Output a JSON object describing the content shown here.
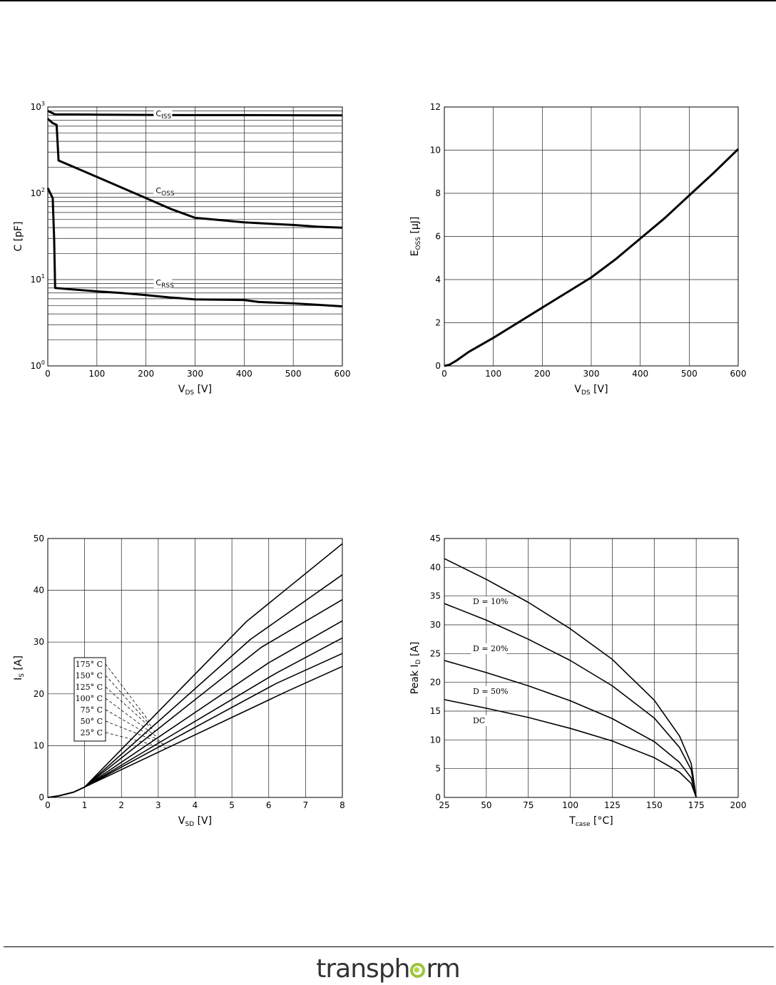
{
  "brand": {
    "name": "transphorm",
    "left": "transph",
    "right": "rm"
  },
  "chart_data": [
    {
      "id": "capacitance",
      "type": "line",
      "xscale": "linear",
      "yscale": "log",
      "xlim": [
        0,
        600
      ],
      "ylim": [
        1,
        1000
      ],
      "xticks": [
        0,
        100,
        200,
        300,
        400,
        500,
        600
      ],
      "xtick_labels": [
        "0",
        "100",
        "200",
        "300",
        "400",
        "500",
        "600"
      ],
      "yticks": [
        1,
        10,
        100,
        1000
      ],
      "ytick_labels": [
        {
          "base": "10",
          "exp": "0"
        },
        {
          "base": "10",
          "exp": "1"
        },
        {
          "base": "10",
          "exp": "2"
        },
        {
          "base": "10",
          "exp": "3"
        }
      ],
      "xlabel": {
        "main": "V",
        "sub": "DS",
        "rest": " [V]"
      },
      "ylabel": {
        "main": "C [pF]",
        "sub": "",
        "rest": ""
      },
      "grid": true,
      "series": [
        {
          "name": "C_ISS",
          "label": {
            "main": "C",
            "sub": "ISS"
          },
          "label_at": [
            220,
            780
          ],
          "x": [
            0,
            15,
            100,
            200,
            300,
            400,
            500,
            600
          ],
          "y": [
            900,
            820,
            815,
            810,
            805,
            805,
            802,
            800
          ]
        },
        {
          "name": "C_OSS",
          "label": {
            "main": "C",
            "sub": "OSS"
          },
          "label_at": [
            220,
            100
          ],
          "x": [
            0,
            10,
            18,
            22,
            100,
            200,
            250,
            300,
            350,
            400,
            500,
            550,
            600
          ],
          "y": [
            730,
            650,
            620,
            240,
            155,
            88,
            66,
            52,
            49,
            46,
            43,
            41,
            40
          ]
        },
        {
          "name": "C_RSS",
          "label": {
            "main": "C",
            "sub": "RSS"
          },
          "label_at": [
            220,
            8.6
          ],
          "x": [
            0,
            10,
            13,
            15,
            50,
            100,
            150,
            200,
            250,
            300,
            400,
            430,
            500,
            550,
            600
          ],
          "y": [
            115,
            88,
            30,
            8,
            7.7,
            7.3,
            7.0,
            6.6,
            6.2,
            5.9,
            5.8,
            5.5,
            5.3,
            5.1,
            4.9
          ]
        }
      ]
    },
    {
      "id": "eoss",
      "type": "line",
      "xscale": "linear",
      "yscale": "linear",
      "xlim": [
        0,
        600
      ],
      "ylim": [
        0,
        12
      ],
      "xticks": [
        0,
        100,
        200,
        300,
        400,
        500,
        600
      ],
      "xtick_labels": [
        "0",
        "100",
        "200",
        "300",
        "400",
        "500",
        "600"
      ],
      "yticks": [
        0,
        2,
        4,
        6,
        8,
        10,
        12
      ],
      "ytick_labels": [
        "0",
        "2",
        "4",
        "6",
        "8",
        "10",
        "12"
      ],
      "xlabel": {
        "main": "V",
        "sub": "DS",
        "rest": " [V]"
      },
      "ylabel": {
        "main": "E",
        "sub": "OSS",
        "rest": " [μJ]"
      },
      "grid": true,
      "series": [
        {
          "name": "E_OSS",
          "x": [
            0,
            10,
            25,
            50,
            100,
            150,
            200,
            250,
            300,
            350,
            400,
            450,
            500,
            550,
            600
          ],
          "y": [
            0,
            0.05,
            0.25,
            0.65,
            1.3,
            2.0,
            2.7,
            3.4,
            4.1,
            4.95,
            5.9,
            6.85,
            7.9,
            8.95,
            10.05
          ]
        }
      ]
    },
    {
      "id": "reverse-conduction",
      "type": "line",
      "xscale": "linear",
      "yscale": "linear",
      "xlim": [
        0,
        8
      ],
      "ylim": [
        0,
        50
      ],
      "xticks": [
        0,
        1,
        2,
        3,
        4,
        5,
        6,
        7,
        8
      ],
      "xtick_labels": [
        "0",
        "1",
        "2",
        "3",
        "4",
        "5",
        "6",
        "7",
        "8"
      ],
      "yticks": [
        0,
        10,
        20,
        30,
        40,
        50
      ],
      "ytick_labels": [
        "0",
        "10",
        "20",
        "30",
        "40",
        "50"
      ],
      "xlabel": {
        "main": "V",
        "sub": "SD",
        "rest": " [V]"
      },
      "ylabel": {
        "main": "I",
        "sub": "S",
        "rest": " [A]"
      },
      "grid": true,
      "legend": {
        "placement": "left",
        "entries": [
          "175° C",
          "150° C",
          "125° C",
          "100° C",
          "75° C",
          "50° C",
          "25° C"
        ]
      },
      "series": [
        {
          "name": "175° C",
          "x": [
            0,
            0.3,
            0.7,
            1,
            5.4,
            8
          ],
          "y": [
            0,
            0.3,
            1.0,
            2,
            34,
            49
          ]
        },
        {
          "name": "150° C",
          "x": [
            0,
            0.3,
            0.7,
            1,
            5.5,
            8
          ],
          "y": [
            0,
            0.3,
            1.0,
            2,
            30.5,
            43
          ]
        },
        {
          "name": "125° C",
          "x": [
            0,
            0.3,
            0.7,
            1,
            5.8,
            8
          ],
          "y": [
            0,
            0.3,
            1.0,
            2,
            29,
            38.2
          ]
        },
        {
          "name": "100° C",
          "x": [
            0,
            0.3,
            0.7,
            1,
            6.0,
            8
          ],
          "y": [
            0,
            0.3,
            1.0,
            2,
            26,
            34.1
          ]
        },
        {
          "name": "75° C",
          "x": [
            0,
            0.3,
            0.7,
            1,
            6.2,
            8
          ],
          "y": [
            0,
            0.3,
            1.0,
            2,
            24,
            30.8
          ]
        },
        {
          "name": "50° C",
          "x": [
            0,
            0.3,
            0.7,
            1,
            6.2,
            8
          ],
          "y": [
            0,
            0.3,
            1.0,
            2,
            22,
            27.8
          ]
        },
        {
          "name": "25° C",
          "x": [
            0,
            0.3,
            0.7,
            1,
            6.5,
            8
          ],
          "y": [
            0,
            0.3,
            1.0,
            2,
            20.5,
            25.3
          ]
        }
      ]
    },
    {
      "id": "peak-current-vs-tcase",
      "type": "line",
      "xscale": "linear",
      "yscale": "linear",
      "xlim": [
        25,
        200
      ],
      "ylim": [
        0,
        45
      ],
      "xticks": [
        25,
        50,
        75,
        100,
        125,
        150,
        175,
        200
      ],
      "xtick_labels": [
        "25",
        "50",
        "75",
        "100",
        "125",
        "150",
        "175",
        "200"
      ],
      "yticks": [
        0,
        5,
        10,
        15,
        20,
        25,
        30,
        35,
        40,
        45
      ],
      "ytick_labels": [
        "0",
        "5",
        "10",
        "15",
        "20",
        "25",
        "30",
        "35",
        "40",
        "45"
      ],
      "xlabel": {
        "main": "T",
        "sub": "case",
        "rest": " [°C]"
      },
      "ylabel": {
        "main": "Peak I",
        "sub": "D",
        "rest": " [A]"
      },
      "grid": true,
      "series": [
        {
          "name": "D = 10%",
          "label": {
            "main": "D = 10%",
            "sub": ""
          },
          "label_at": [
            42,
            33.6
          ],
          "x": [
            25,
            50,
            75,
            100,
            125,
            150,
            165,
            172,
            175
          ],
          "y": [
            41.5,
            37.9,
            33.9,
            29.3,
            24.0,
            16.9,
            10.7,
            5.9,
            0
          ]
        },
        {
          "name": "D = 20%",
          "label": {
            "main": "D = 20%",
            "sub": ""
          },
          "label_at": [
            42,
            25.4
          ],
          "x": [
            25,
            50,
            75,
            100,
            125,
            150,
            165,
            172,
            175
          ],
          "y": [
            33.7,
            30.8,
            27.5,
            23.8,
            19.4,
            13.8,
            8.7,
            4.8,
            0
          ]
        },
        {
          "name": "D = 50%",
          "label": {
            "main": "D = 50%",
            "sub": ""
          },
          "label_at": [
            42,
            18.0
          ],
          "x": [
            25,
            50,
            75,
            100,
            125,
            150,
            165,
            172,
            175
          ],
          "y": [
            23.8,
            21.7,
            19.4,
            16.8,
            13.7,
            9.7,
            6.1,
            3.4,
            0
          ]
        },
        {
          "name": "DC",
          "label": {
            "main": "DC",
            "sub": ""
          },
          "label_at": [
            42,
            12.9
          ],
          "x": [
            25,
            50,
            75,
            100,
            125,
            150,
            165,
            172,
            175
          ],
          "y": [
            17,
            15.5,
            13.9,
            12.0,
            9.8,
            6.9,
            4.4,
            2.4,
            0
          ]
        }
      ]
    }
  ]
}
